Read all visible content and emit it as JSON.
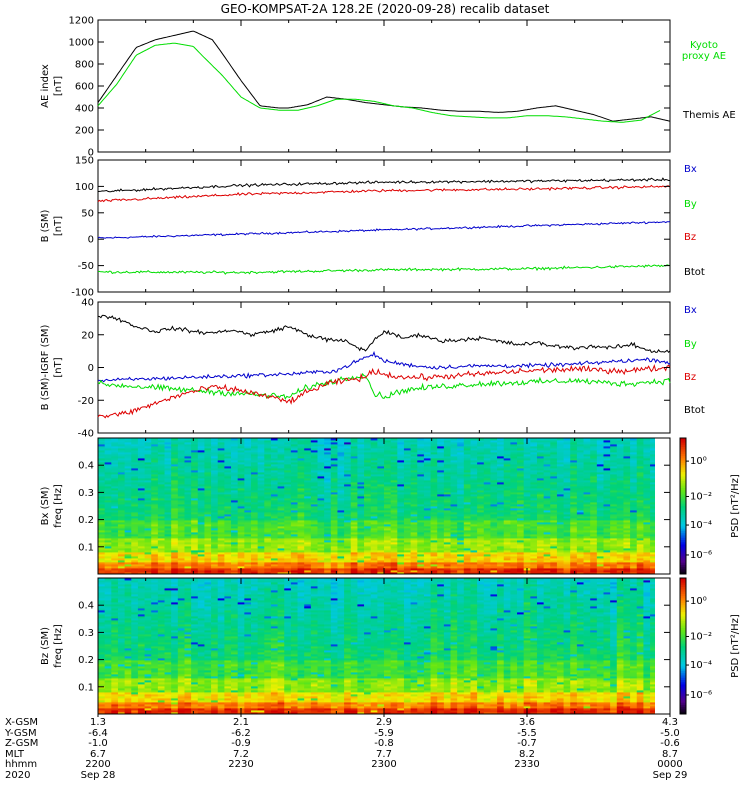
{
  "figure": {
    "title": "GEO-KOMPSAT-2A 128.2E (2020-09-28) recalib dataset"
  },
  "chart_data": [
    {
      "type": "line",
      "id": "ae",
      "ylabel_top": "AE index",
      "ylabel_unit": "[nT]",
      "ylim": [
        0,
        1200
      ],
      "yticks": [
        0,
        200,
        400,
        600,
        800,
        1000,
        1200
      ],
      "x_range_minutes": [
        0,
        60
      ],
      "series": [
        {
          "name": "Themis AE",
          "color": "#000000",
          "x": [
            0,
            2,
            4,
            6,
            8,
            10,
            12,
            13,
            15,
            17,
            19,
            20,
            22,
            24,
            26,
            28,
            30,
            32,
            34,
            36,
            38,
            40,
            42,
            44,
            46,
            48,
            50,
            52,
            54,
            56,
            58,
            60
          ],
          "y": [
            450,
            700,
            950,
            1020,
            1060,
            1100,
            1020,
            900,
            650,
            420,
            400,
            400,
            430,
            500,
            480,
            450,
            430,
            410,
            400,
            380,
            370,
            370,
            360,
            370,
            400,
            420,
            380,
            340,
            280,
            300,
            320,
            280
          ]
        },
        {
          "name": "Kyoto proxy AE",
          "color": "#00dd00",
          "x": [
            0,
            2,
            4,
            6,
            8,
            10,
            11,
            13,
            15,
            17,
            19,
            21,
            23,
            25,
            27,
            29,
            31,
            33,
            35,
            37,
            39,
            41,
            43,
            45,
            47,
            49,
            51,
            53,
            55,
            57,
            59
          ],
          "y": [
            420,
            620,
            880,
            970,
            990,
            960,
            870,
            700,
            500,
            400,
            380,
            380,
            420,
            480,
            480,
            460,
            420,
            400,
            360,
            330,
            320,
            310,
            310,
            330,
            330,
            320,
            300,
            280,
            270,
            290,
            380
          ]
        }
      ]
    },
    {
      "type": "line",
      "id": "b_sm",
      "ylabel_top": "B (SM)",
      "ylabel_unit": "[nT]",
      "ylim": [
        -100,
        150
      ],
      "yticks": [
        -100,
        -50,
        0,
        50,
        100,
        150
      ],
      "x_range_minutes": [
        0,
        60
      ],
      "series": [
        {
          "name": "Bx",
          "color": "#0000cc",
          "x": [
            0,
            60
          ],
          "y": [
            2,
            33
          ],
          "noise": 1.5
        },
        {
          "name": "By",
          "color": "#00dd00",
          "x": [
            0,
            15,
            30,
            45,
            60
          ],
          "y": [
            -62,
            -63,
            -58,
            -56,
            -50
          ],
          "noise": 2
        },
        {
          "name": "Bz",
          "color": "#dd0000",
          "x": [
            0,
            15,
            30,
            45,
            60
          ],
          "y": [
            72,
            85,
            92,
            95,
            100
          ],
          "noise": 2
        },
        {
          "name": "Btot",
          "color": "#000000",
          "x": [
            0,
            15,
            30,
            45,
            60
          ],
          "y": [
            90,
            102,
            108,
            110,
            113
          ],
          "noise": 2
        }
      ]
    },
    {
      "type": "line",
      "id": "b_sm_igrf",
      "ylabel_top": "B (SM)-IGRF (SM)",
      "ylabel_unit": "[nT]",
      "ylim": [
        -40,
        40
      ],
      "yticks": [
        -40,
        -20,
        0,
        20,
        40
      ],
      "x_range_minutes": [
        0,
        60
      ],
      "series": [
        {
          "name": "Bx",
          "color": "#0000cc",
          "x": [
            0,
            5,
            10,
            15,
            20,
            25,
            28,
            29,
            30,
            32,
            35,
            40,
            45,
            50,
            55,
            58,
            60
          ],
          "y": [
            -8,
            -7,
            -6,
            -5,
            -4,
            -2,
            6,
            8,
            4,
            2,
            0,
            1,
            1,
            2,
            4,
            5,
            3
          ],
          "noise": 1
        },
        {
          "name": "By",
          "color": "#00dd00",
          "x": [
            0,
            5,
            10,
            15,
            20,
            22,
            25,
            28,
            29,
            30,
            32,
            35,
            40,
            45,
            50,
            55,
            60
          ],
          "y": [
            -10,
            -12,
            -14,
            -16,
            -18,
            -12,
            -8,
            -4,
            -16,
            -18,
            -14,
            -12,
            -10,
            -9,
            -8,
            -10,
            -8
          ],
          "noise": 1.5
        },
        {
          "name": "Bz",
          "color": "#dd0000",
          "x": [
            0,
            3,
            6,
            9,
            12,
            15,
            18,
            20,
            22,
            24,
            26,
            28,
            29,
            30,
            32,
            35,
            40,
            45,
            50,
            55,
            60
          ],
          "y": [
            -30,
            -28,
            -22,
            -16,
            -12,
            -14,
            -18,
            -21,
            -15,
            -10,
            -8,
            -6,
            -2,
            -4,
            -6,
            -6,
            -4,
            -2,
            -1,
            -2,
            0
          ],
          "noise": 1.5
        },
        {
          "name": "Btot",
          "color": "#000000",
          "x": [
            0,
            2,
            4,
            6,
            8,
            10,
            12,
            14,
            16,
            18,
            20,
            22,
            24,
            26,
            28,
            29,
            30,
            32,
            34,
            36,
            38,
            40,
            42,
            44,
            46,
            48,
            50,
            52,
            54,
            56,
            58,
            60
          ],
          "y": [
            32,
            30,
            25,
            22,
            24,
            22,
            21,
            23,
            20,
            22,
            25,
            20,
            17,
            16,
            10,
            17,
            22,
            18,
            20,
            16,
            17,
            18,
            16,
            14,
            15,
            13,
            12,
            13,
            12,
            14,
            10,
            10
          ],
          "noise": 1
        }
      ]
    },
    {
      "type": "heatmap",
      "id": "bx_psd",
      "ylabel_top": "Bx (SM)",
      "ylabel_unit": "freq [Hz]",
      "ylim": [
        0,
        0.5
      ],
      "yticks": [
        0.1,
        0.2,
        0.3,
        0.4
      ],
      "x_range_minutes": [
        0,
        60
      ],
      "colorbar_label": "PSD [nT²/Hz]",
      "colorbar_ticks": [
        "10⁰",
        "10⁻²",
        "10⁻⁴",
        "10⁻⁶"
      ]
    },
    {
      "type": "heatmap",
      "id": "bz_psd",
      "ylabel_top": "Bz (SM)",
      "ylabel_unit": "freq [Hz]",
      "ylim": [
        0,
        0.5
      ],
      "yticks": [
        0.1,
        0.2,
        0.3,
        0.4
      ],
      "x_range_minutes": [
        0,
        60
      ],
      "colorbar_label": "PSD [nT²/Hz]",
      "colorbar_ticks": [
        "10⁰",
        "10⁻²",
        "10⁻⁴",
        "10⁻⁶"
      ]
    }
  ],
  "ephemeris": {
    "row_labels": [
      "X-GSM",
      "Y-GSM",
      "Z-GSM",
      "MLT",
      "hhmm",
      "2020"
    ],
    "columns": [
      {
        "values": [
          "1.3",
          "-6.4",
          "-1.0",
          "6.7",
          "2200",
          "Sep 28"
        ]
      },
      {
        "values": [
          "2.1",
          "-6.2",
          "-0.9",
          "7.2",
          "2230",
          ""
        ]
      },
      {
        "values": [
          "2.9",
          "-5.9",
          "-0.8",
          "7.7",
          "2300",
          ""
        ]
      },
      {
        "values": [
          "3.6",
          "-5.5",
          "-0.7",
          "8.2",
          "2330",
          ""
        ]
      },
      {
        "values": [
          "4.3",
          "-5.0",
          "-0.6",
          "8.7",
          "0000",
          "Sep 29"
        ]
      }
    ]
  },
  "colors": {
    "black": "#000000",
    "green": "#00dd00",
    "red": "#dd0000",
    "blue": "#0000cc"
  }
}
